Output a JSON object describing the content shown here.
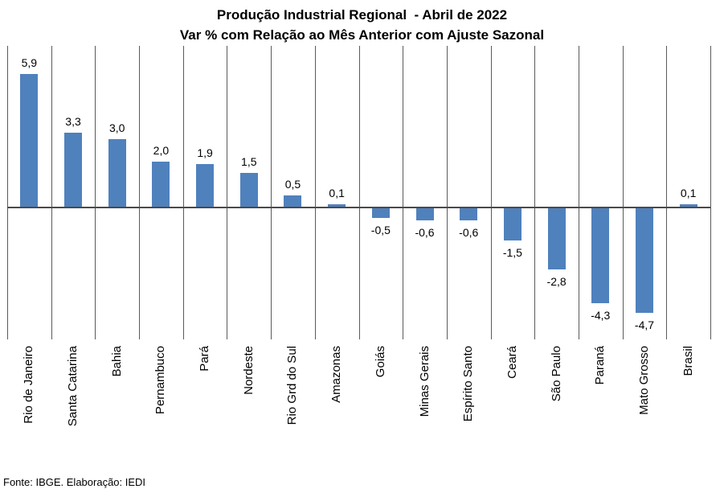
{
  "title": {
    "line1": "Produção Industrial Regional  - Abril de 2022",
    "line2": "Var % com Relação ao Mês Anterior com Ajuste Sazonal"
  },
  "footer": {
    "source": "Fonte: IBGE. Elaboração: IEDI"
  },
  "chart_data": {
    "type": "bar",
    "title": "Produção Industrial Regional - Abril de 2022",
    "subtitle": "Var % com Relação ao Mês Anterior com Ajuste Sazonal",
    "categories": [
      "Rio de Janeiro",
      "Santa Catarina",
      "Bahia",
      "Pernambuco",
      "Pará",
      "Nordeste",
      "Rio Grd do Sul",
      "Amazonas",
      "Goiás",
      "Minas Gerais",
      "Espírito Santo",
      "Ceará",
      "São Paulo",
      "Paraná",
      "Mato Grosso",
      "Brasil"
    ],
    "values": [
      5.9,
      3.3,
      3.0,
      2.0,
      1.9,
      1.5,
      0.5,
      0.1,
      -0.5,
      -0.6,
      -0.6,
      -1.5,
      -2.8,
      -4.3,
      -4.7,
      0.1
    ],
    "value_labels": [
      "5,9",
      "3,3",
      "3,0",
      "2,0",
      "1,9",
      "1,5",
      "0,5",
      "0,1",
      "-0,5",
      "-0,6",
      "-0,6",
      "-1,5",
      "-2,8",
      "-4,3",
      "-4,7",
      "0,1"
    ],
    "xlabel": "",
    "ylabel": "",
    "ylim": [
      -5.9,
      7.15
    ],
    "legend": "none",
    "grid": "vertical category separator lines",
    "value_labels_shown": true,
    "decimal_separator": ",",
    "bar_color": "#4F81BD",
    "axis_line_color": "#4a4a4a",
    "gridline_color": "#5a5a5a",
    "text_color": "#000000"
  }
}
